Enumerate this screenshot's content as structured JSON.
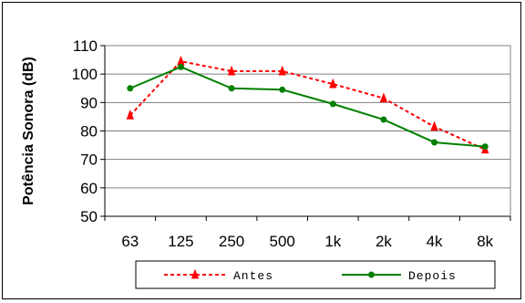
{
  "chart_data": {
    "type": "line",
    "categories": [
      "63",
      "125",
      "250",
      "500",
      "1k",
      "2k",
      "4k",
      "8k"
    ],
    "series": [
      {
        "name": "Antes",
        "values": [
          85.5,
          104.5,
          101,
          101,
          96.5,
          91.5,
          81.5,
          73.5
        ],
        "color": "#ff0000",
        "line_style": "dashed",
        "marker": "triangle"
      },
      {
        "name": "Depois",
        "values": [
          95,
          102.5,
          95,
          94.5,
          89.5,
          84,
          76,
          74.5
        ],
        "color": "#008000",
        "line_style": "solid",
        "marker": "circle"
      }
    ],
    "ylabel": "Potência Sonora  (dB)",
    "xlabel": "",
    "title": "",
    "ylim": [
      50,
      110
    ],
    "yticks": [
      50,
      60,
      70,
      80,
      90,
      100,
      110
    ],
    "grid": "horizontal",
    "legend_position": "bottom"
  }
}
